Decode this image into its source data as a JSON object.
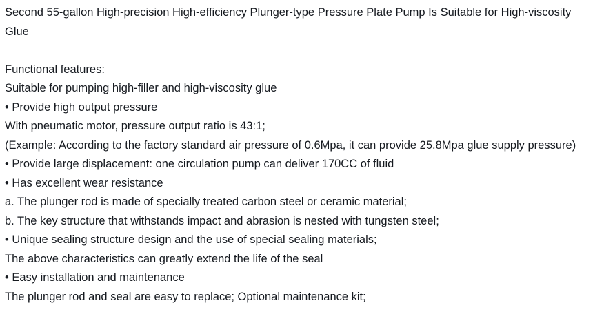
{
  "colors": {
    "background": "#ffffff",
    "text": "#161a20"
  },
  "document": {
    "title": "Second 55-gallon High-precision High-efficiency Plunger-type Pressure Plate Pump Is Suitable for High-viscosity Glue",
    "features_heading": "Functional features:",
    "lines": [
      "Suitable for pumping high-filler and high-viscosity glue",
      "• Provide high output pressure",
      "With pneumatic motor, pressure output ratio is 43:1;",
      "(Example: According to the factory standard air pressure of 0.6Mpa, it can provide 25.8Mpa glue supply pressure)",
      "• Provide large displacement: one circulation pump can deliver 170CC of fluid",
      "• Has excellent wear resistance",
      "a. The plunger rod is made of specially treated carbon steel or ceramic material;",
      "b. The key structure that withstands impact and abrasion is nested with tungsten steel;",
      "• Unique sealing structure design and the use of special sealing materials;",
      "The above characteristics can greatly extend the life of the seal",
      "• Easy installation and maintenance",
      "The plunger rod and seal are easy to replace; Optional maintenance kit;"
    ]
  }
}
